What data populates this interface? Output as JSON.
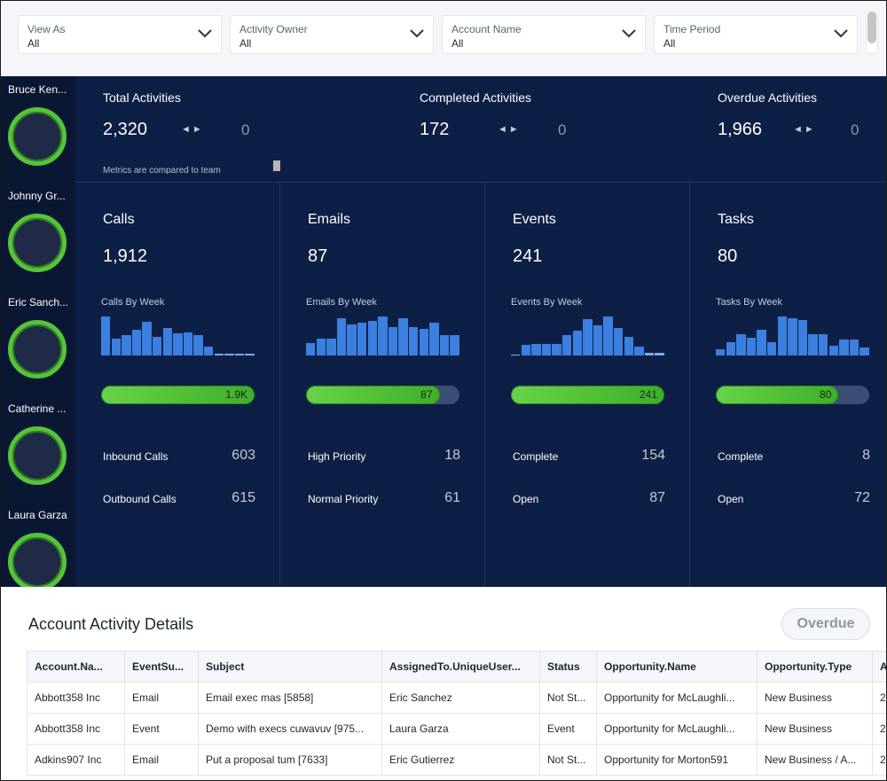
{
  "filters": [
    {
      "label": "View As",
      "value": "All"
    },
    {
      "label": "Activity Owner",
      "value": "All"
    },
    {
      "label": "Account Name",
      "value": "All"
    },
    {
      "label": "Time Period",
      "value": "All"
    }
  ],
  "people": [
    "Bruce Ken...",
    "Johnny Gr...",
    "Eric Sanch...",
    "Catherine ...",
    "Laura Garza"
  ],
  "summary": {
    "total": {
      "label": "Total Activities",
      "value": "2,320",
      "compare": "0"
    },
    "completed": {
      "label": "Completed Activities",
      "value": "172",
      "compare": "0"
    },
    "overdue": {
      "label": "Overdue Activities",
      "value": "1,966",
      "compare": "0"
    },
    "arrows": "◄►",
    "footnote": "Metrics are compared to team"
  },
  "categories": [
    {
      "title": "Calls",
      "total": "1,912",
      "week_label": "Calls By Week",
      "weekly": [
        42,
        18,
        22,
        28,
        36,
        20,
        30,
        24,
        25,
        22,
        10,
        2,
        2,
        2,
        2
      ],
      "progress": {
        "label": "1.9K",
        "fraction": 1.0
      },
      "stats": [
        {
          "label": "Inbound Calls",
          "value": "603"
        },
        {
          "label": "Outbound Calls",
          "value": "615"
        }
      ]
    },
    {
      "title": "Emails",
      "total": "87",
      "week_label": "Emails By Week",
      "weekly": [
        12,
        16,
        16,
        36,
        30,
        32,
        34,
        38,
        28,
        36,
        28,
        26,
        32,
        20,
        20
      ],
      "progress": {
        "label": "87",
        "fraction": 0.87
      },
      "stats": [
        {
          "label": "High Priority",
          "value": "18"
        },
        {
          "label": "Normal Priority",
          "value": "61"
        }
      ]
    },
    {
      "title": "Events",
      "total": "241",
      "week_label": "Events By Week",
      "weekly": [
        1,
        9,
        10,
        10,
        10,
        18,
        22,
        32,
        26,
        34,
        24,
        16,
        8,
        2,
        2
      ],
      "progress": {
        "label": "241",
        "fraction": 1.0
      },
      "stats": [
        {
          "label": "Complete",
          "value": "154"
        },
        {
          "label": "Open",
          "value": "87"
        }
      ]
    },
    {
      "title": "Tasks",
      "total": "80",
      "week_label": "Tasks By Week",
      "weekly": [
        6,
        14,
        22,
        18,
        26,
        14,
        40,
        38,
        36,
        22,
        22,
        10,
        16,
        16,
        8
      ],
      "progress": {
        "label": "80",
        "fraction": 0.8
      },
      "stats": [
        {
          "label": "Complete",
          "value": "8"
        },
        {
          "label": "Open",
          "value": "72"
        }
      ]
    }
  ],
  "details": {
    "title": "Account Activity Details",
    "overdue_button": "Overdue",
    "columns": [
      "Account.Na...",
      "EventSu...",
      "Subject",
      "AssignedTo.UniqueUser...",
      "Status",
      "Opportunity.Name",
      "Opportunity.Type",
      "A"
    ],
    "rows": [
      [
        "Abbott358 Inc",
        "Email",
        "Email exec mas [5858]",
        "Eric Sanchez",
        "Not St...",
        "Opportunity for McLaughli...",
        "New Business",
        "2"
      ],
      [
        "Abbott358 Inc",
        "Event",
        "Demo with execs cuwavuv [975...",
        "Laura Garza",
        "Event",
        "Opportunity for McLaughli...",
        "New Business",
        "2"
      ],
      [
        "Adkins907 Inc",
        "Email",
        "Put a proposal tum [7633]",
        "Eric Gutierrez",
        "Not St...",
        "Opportunity for Morton591",
        "New Business / A...",
        "2"
      ]
    ]
  },
  "colors": {
    "dashboard_bg": "#0d1f45",
    "bar": "#3b7fe0",
    "progress": "#56c43a",
    "ring": "#56c43a"
  }
}
